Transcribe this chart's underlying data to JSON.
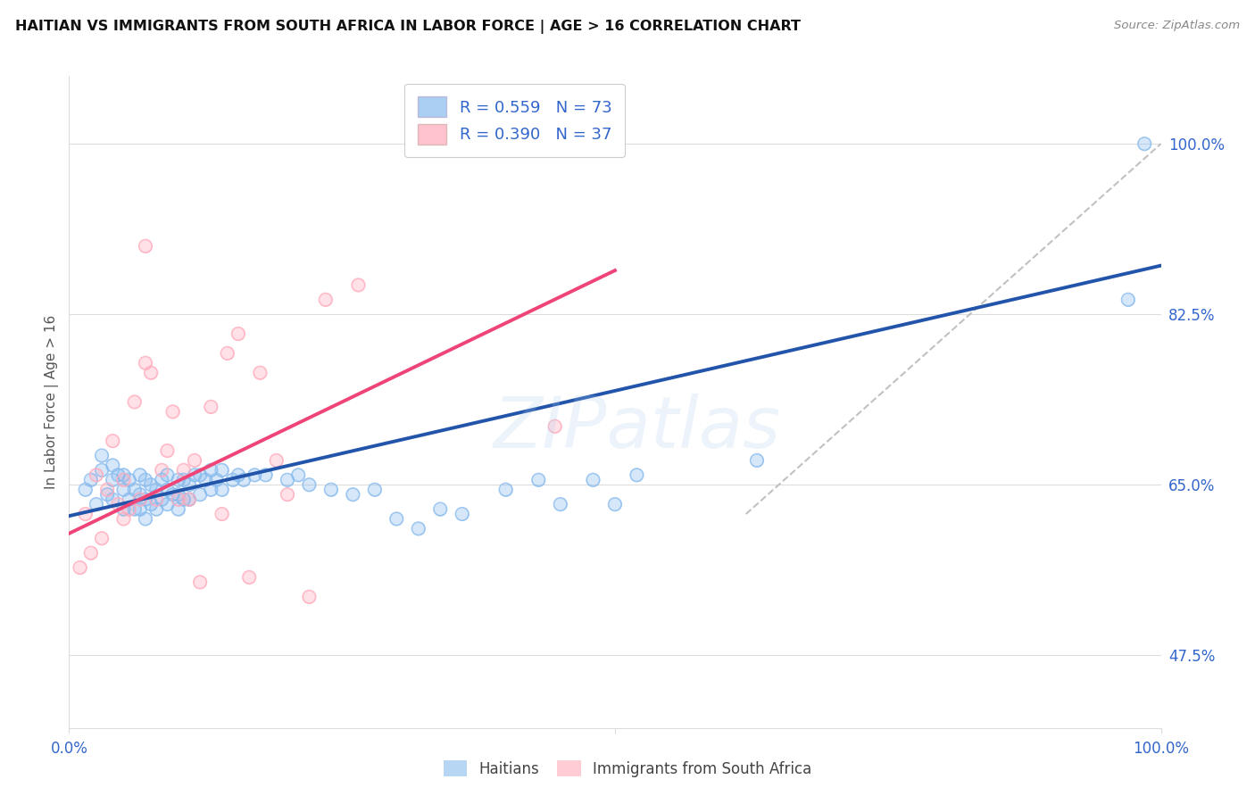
{
  "title": "HAITIAN VS IMMIGRANTS FROM SOUTH AFRICA IN LABOR FORCE | AGE > 16 CORRELATION CHART",
  "source": "Source: ZipAtlas.com",
  "ylabel": "In Labor Force | Age > 16",
  "xlim": [
    0.0,
    1.0
  ],
  "ylim": [
    0.4,
    1.07
  ],
  "haitians_R": 0.559,
  "haitians_N": 73,
  "sa_R": 0.39,
  "sa_N": 37,
  "blue_color": "#88BBEE",
  "pink_color": "#FFAABB",
  "blue_line_color": "#2255AA",
  "pink_line_color": "#EE4477",
  "dashed_line_color": "#BBBBBB",
  "watermark": "ZIPatlas",
  "legend_label_blue": "Haitians",
  "legend_label_pink": "Immigrants from South Africa",
  "background_color": "#FFFFFF",
  "grid_color": "#DDDDDD",
  "title_color": "#111111",
  "axis_label_color": "#3366CC",
  "ytick_positions": [
    0.475,
    0.65,
    0.825,
    1.0
  ],
  "ytick_labels": [
    "47.5%",
    "65.0%",
    "82.5%",
    "100.0%"
  ],
  "blue_scatter_x": [
    0.015,
    0.02,
    0.025,
    0.03,
    0.03,
    0.035,
    0.04,
    0.04,
    0.04,
    0.045,
    0.05,
    0.05,
    0.05,
    0.055,
    0.055,
    0.06,
    0.06,
    0.065,
    0.065,
    0.065,
    0.07,
    0.07,
    0.07,
    0.075,
    0.075,
    0.08,
    0.08,
    0.085,
    0.085,
    0.09,
    0.09,
    0.09,
    0.095,
    0.1,
    0.1,
    0.1,
    0.105,
    0.105,
    0.11,
    0.11,
    0.115,
    0.12,
    0.12,
    0.125,
    0.13,
    0.13,
    0.135,
    0.14,
    0.14,
    0.15,
    0.155,
    0.16,
    0.17,
    0.18,
    0.2,
    0.21,
    0.22,
    0.24,
    0.26,
    0.28,
    0.3,
    0.32,
    0.34,
    0.36,
    0.4,
    0.43,
    0.45,
    0.48,
    0.5,
    0.52,
    0.63,
    0.97,
    0.985
  ],
  "blue_scatter_y": [
    0.645,
    0.655,
    0.63,
    0.665,
    0.68,
    0.64,
    0.635,
    0.655,
    0.67,
    0.66,
    0.625,
    0.645,
    0.66,
    0.635,
    0.655,
    0.625,
    0.645,
    0.625,
    0.64,
    0.66,
    0.615,
    0.635,
    0.655,
    0.63,
    0.65,
    0.625,
    0.645,
    0.635,
    0.655,
    0.63,
    0.645,
    0.66,
    0.64,
    0.625,
    0.64,
    0.655,
    0.635,
    0.655,
    0.635,
    0.65,
    0.66,
    0.64,
    0.66,
    0.655,
    0.645,
    0.665,
    0.655,
    0.645,
    0.665,
    0.655,
    0.66,
    0.655,
    0.66,
    0.66,
    0.655,
    0.66,
    0.65,
    0.645,
    0.64,
    0.645,
    0.615,
    0.605,
    0.625,
    0.62,
    0.645,
    0.655,
    0.63,
    0.655,
    0.63,
    0.66,
    0.675,
    0.84,
    1.0
  ],
  "pink_scatter_x": [
    0.01,
    0.015,
    0.02,
    0.025,
    0.03,
    0.035,
    0.04,
    0.045,
    0.05,
    0.05,
    0.055,
    0.06,
    0.065,
    0.07,
    0.075,
    0.08,
    0.085,
    0.09,
    0.095,
    0.1,
    0.105,
    0.11,
    0.115,
    0.12,
    0.13,
    0.14,
    0.145,
    0.155,
    0.165,
    0.175,
    0.19,
    0.2,
    0.22,
    0.235,
    0.265,
    0.445,
    0.07
  ],
  "pink_scatter_y": [
    0.565,
    0.62,
    0.58,
    0.66,
    0.595,
    0.645,
    0.695,
    0.63,
    0.615,
    0.655,
    0.625,
    0.735,
    0.635,
    0.775,
    0.765,
    0.635,
    0.665,
    0.685,
    0.725,
    0.635,
    0.665,
    0.635,
    0.675,
    0.55,
    0.73,
    0.62,
    0.785,
    0.805,
    0.555,
    0.765,
    0.675,
    0.64,
    0.535,
    0.84,
    0.855,
    0.71,
    0.895
  ],
  "blue_trendline_x": [
    0.0,
    1.0
  ],
  "blue_trendline_y": [
    0.618,
    0.875
  ],
  "pink_trendline_x": [
    0.0,
    0.5
  ],
  "pink_trendline_y": [
    0.6,
    0.87
  ],
  "dashed_trendline_x": [
    0.62,
    1.0
  ],
  "dashed_trendline_y": [
    0.62,
    1.0
  ]
}
